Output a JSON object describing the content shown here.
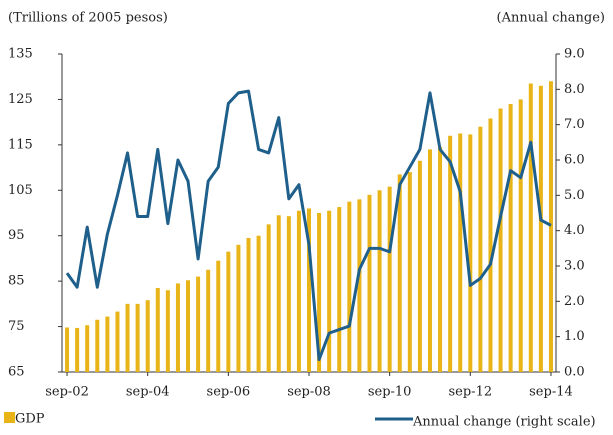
{
  "chart_data": {
    "type": "bar-line",
    "y_label": "(Trillions of 2005 pesos)",
    "y2_label": "(Annual change)",
    "categories": [
      "sep-02",
      null,
      null,
      null,
      null,
      null,
      null,
      null,
      "sep-04",
      null,
      null,
      null,
      null,
      null,
      null,
      null,
      "sep-06",
      null,
      null,
      null,
      null,
      null,
      null,
      null,
      "sep-08",
      null,
      null,
      null,
      null,
      null,
      null,
      null,
      "sep-10",
      null,
      null,
      null,
      null,
      null,
      null,
      null,
      "sep-12",
      null,
      null,
      null,
      null,
      null,
      null,
      null,
      "sep-14"
    ],
    "series": [
      {
        "name": "GDP",
        "type": "bar",
        "color": "#e8b418",
        "values": [
          74.8,
          74.7,
          75.3,
          76.5,
          77.2,
          78.3,
          80,
          80,
          80.8,
          83.5,
          83,
          84.5,
          85.2,
          86,
          87.5,
          89.5,
          91.5,
          93,
          94.5,
          95,
          97.5,
          99.5,
          99.3,
          100.5,
          101,
          100,
          100.5,
          101.3,
          102.5,
          103,
          104,
          105,
          105.8,
          108.5,
          109,
          111.5,
          114,
          114.5,
          117,
          117.5,
          117.3,
          119,
          120.8,
          123,
          124,
          125,
          128.5,
          128,
          129
        ]
      },
      {
        "name": "Annual change (right scale)",
        "type": "line",
        "axis": "y2",
        "color": "#1f5f8b",
        "values": [
          2.8,
          2.4,
          4.1,
          2.4,
          3.9,
          5.0,
          6.2,
          4.4,
          4.4,
          6.3,
          4.2,
          6.0,
          5.4,
          3.2,
          5.4,
          5.8,
          7.6,
          7.9,
          7.95,
          6.3,
          6.2,
          7.2,
          4.9,
          5.3,
          3.6,
          0.35,
          1.1,
          1.2,
          1.3,
          2.9,
          3.5,
          3.5,
          3.4,
          5.3,
          5.8,
          6.3,
          7.9,
          6.3,
          5.95,
          5.1,
          2.45,
          2.65,
          3.05,
          4.4,
          5.7,
          5.5,
          6.5,
          4.3,
          4.15
        ]
      }
    ],
    "ylim": [
      65,
      135
    ],
    "yticks": [
      65,
      75,
      85,
      95,
      105,
      115,
      125,
      135
    ],
    "y2lim": [
      0,
      9
    ],
    "y2ticks": [
      {
        "value": 0,
        "label": "0.0"
      },
      {
        "value": 1,
        "label": "1.0"
      },
      {
        "value": 2,
        "label": "2.0"
      },
      {
        "value": 3,
        "label": "3.0"
      },
      {
        "value": 4,
        "label": "4.0"
      },
      {
        "value": 5,
        "label": "5.0"
      },
      {
        "value": 6,
        "label": "6.0"
      },
      {
        "value": 7,
        "label": "7.0"
      },
      {
        "value": 8,
        "label": "8.0"
      },
      {
        "value": 9,
        "label": "9.0"
      }
    ],
    "grid": false
  }
}
